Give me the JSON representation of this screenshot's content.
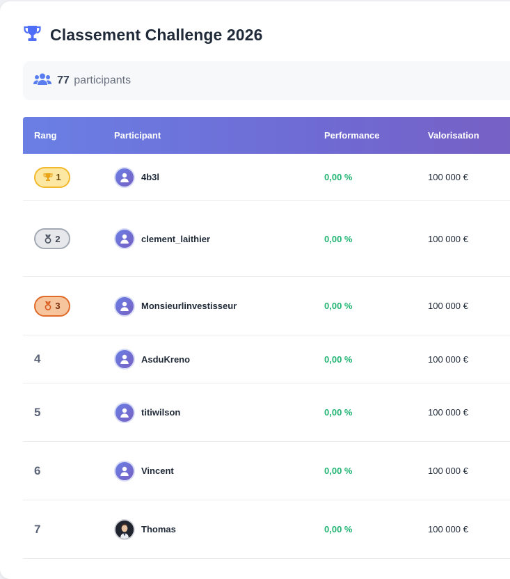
{
  "header": {
    "title": "Classement Challenge 2026",
    "icon": "trophy-icon"
  },
  "stats": {
    "count": "77",
    "label": "participants",
    "icon": "users-icon"
  },
  "table": {
    "columns": {
      "rank": "Rang",
      "participant": "Participant",
      "performance": "Performance",
      "valuation": "Valorisation"
    },
    "rows": [
      {
        "rank": "1",
        "medal": "gold",
        "name": "4b3l",
        "performance": "0,00 %",
        "valuation": "100 000 €"
      },
      {
        "rank": "2",
        "medal": "silver",
        "name": "clement_laithier",
        "performance": "0,00 %",
        "valuation": "100 000 €"
      },
      {
        "rank": "3",
        "medal": "bronze",
        "name": "Monsieurlinvestisseur",
        "performance": "0,00 %",
        "valuation": "100 000 €"
      },
      {
        "rank": "4",
        "medal": "",
        "name": "AsduKreno",
        "performance": "0,00 %",
        "valuation": "100 000 €"
      },
      {
        "rank": "5",
        "medal": "",
        "name": "titiwilson",
        "performance": "0,00 %",
        "valuation": "100 000 €"
      },
      {
        "rank": "6",
        "medal": "",
        "name": "Vincent",
        "performance": "0,00 %",
        "valuation": "100 000 €"
      },
      {
        "rank": "7",
        "medal": "",
        "name": "Thomas",
        "performance": "0,00 %",
        "valuation": "100 000 €"
      }
    ]
  },
  "colors": {
    "accent": "#4f6ef7",
    "header_gradient_start": "#6a7fe4",
    "header_gradient_end": "#7760c4",
    "positive": "#22b573",
    "gold": "#f2b92c",
    "silver": "#a3a9b3",
    "bronze": "#e06a2a"
  }
}
